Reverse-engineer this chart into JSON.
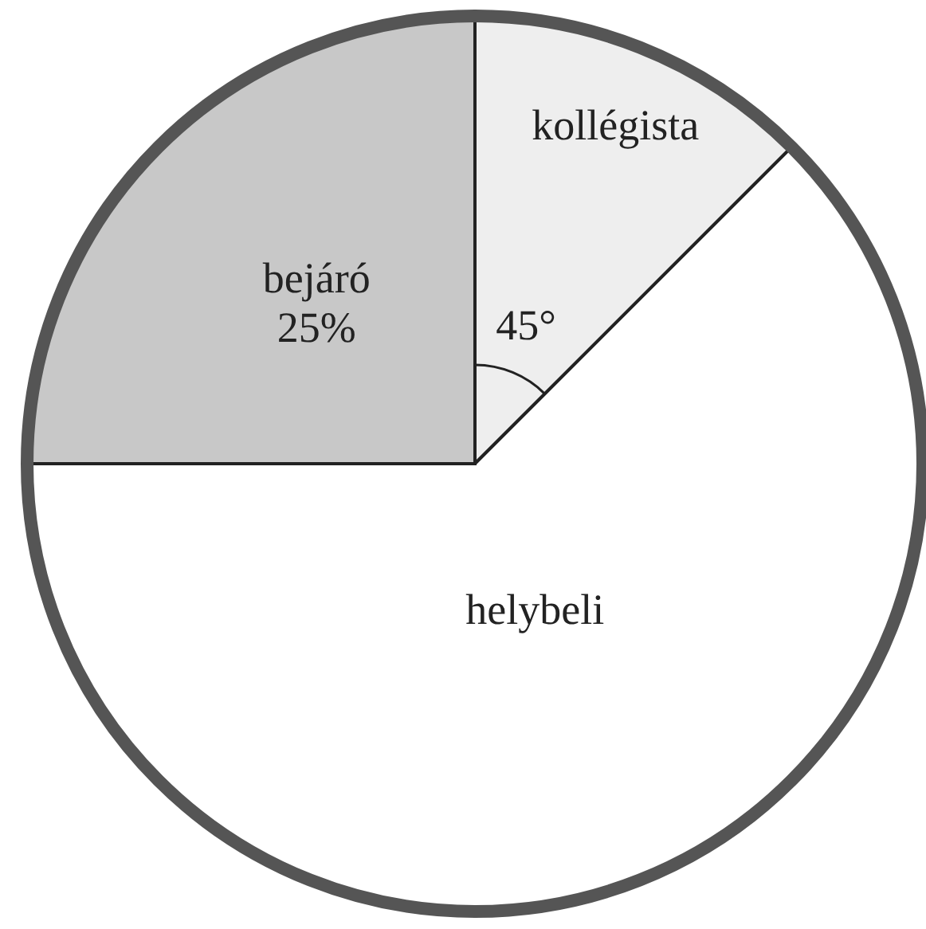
{
  "chart_data": {
    "type": "pie",
    "categories": [
      "kollégista",
      "helybeli",
      "bejáró"
    ],
    "values": [
      12.5,
      62.5,
      25
    ],
    "colors": [
      "#eeeeee",
      "#ffffff",
      "#c8c8c8"
    ],
    "value_labels": [
      null,
      null,
      "25%"
    ],
    "annotations": [
      "45°"
    ]
  }
}
